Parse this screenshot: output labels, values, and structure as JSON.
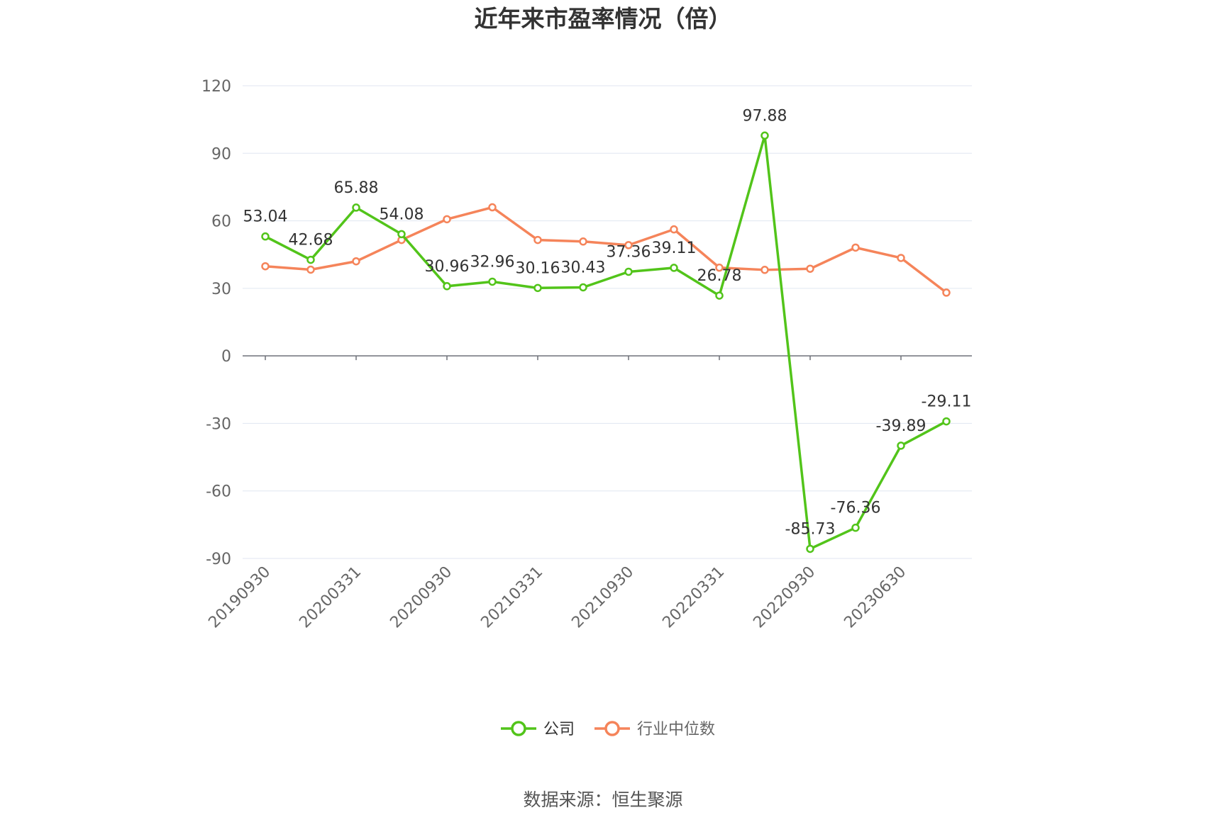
{
  "chart_data": {
    "type": "line",
    "title": "近年来市盈率情况（倍）",
    "xlabel": "",
    "ylabel": "",
    "ylim": [
      -90,
      120
    ],
    "yticks": [
      120,
      90,
      60,
      30,
      0,
      -30,
      -60,
      -90
    ],
    "x_tick_labels": [
      "20190930",
      "20200331",
      "20200930",
      "20210331",
      "20210930",
      "20220331",
      "20220930",
      "20230630"
    ],
    "series": [
      {
        "name": "公司",
        "color": "#52c41a",
        "values": [
          53.04,
          42.68,
          65.88,
          54.08,
          30.96,
          32.96,
          30.16,
          30.43,
          37.36,
          39.11,
          26.78,
          97.88,
          -85.73,
          -76.36,
          -39.89,
          -29.11
        ],
        "labels": [
          "53.04",
          "42.68",
          "65.88",
          "54.08",
          "30.96",
          "32.96",
          "30.16",
          "30.43",
          "37.36",
          "39.11",
          "26.78",
          "97.88",
          "-85.73",
          "-76.36",
          "-39.89",
          "-29.11"
        ]
      },
      {
        "name": "行业中位数",
        "color": "#f5845a",
        "values": [
          39.8,
          38.3,
          42.0,
          51.5,
          60.7,
          66.0,
          51.5,
          50.8,
          49.2,
          56.2,
          39.2,
          38.2,
          38.7,
          48.1,
          43.5,
          28.1
        ]
      }
    ],
    "grid": true,
    "legend": "bottom-center"
  },
  "source": "数据来源：恒生聚源"
}
